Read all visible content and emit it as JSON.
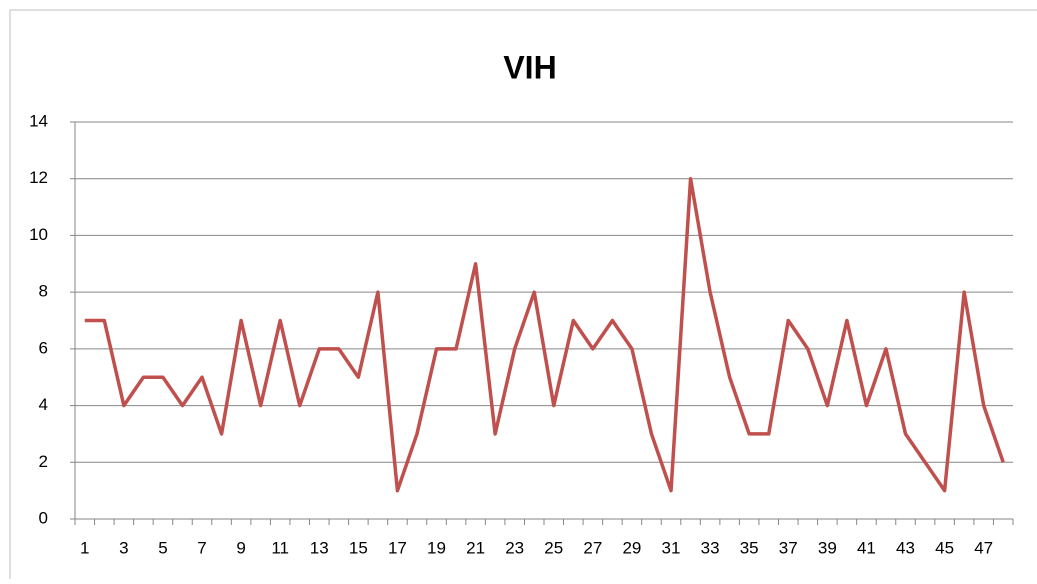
{
  "chart_data": {
    "type": "line",
    "title": "VIH",
    "categories": [
      1,
      null,
      3,
      null,
      5,
      null,
      7,
      null,
      9,
      null,
      11,
      null,
      13,
      null,
      15,
      null,
      17,
      null,
      19,
      null,
      21,
      null,
      23,
      null,
      25,
      null,
      27,
      null,
      29,
      null,
      31,
      null,
      33,
      null,
      35,
      null,
      37,
      null,
      39,
      null,
      41,
      null,
      43,
      null,
      45,
      null,
      47,
      null
    ],
    "series": [
      {
        "name": "VIH",
        "color": "#c0504d",
        "values": [
          7,
          7,
          4,
          5,
          5,
          4,
          5,
          3,
          7,
          4,
          7,
          4,
          6,
          6,
          5,
          8,
          1,
          3,
          6,
          6,
          9,
          3,
          6,
          8,
          4,
          7,
          6,
          7,
          6,
          3,
          1,
          12,
          8,
          5,
          3,
          3,
          7,
          6,
          4,
          7,
          4,
          6,
          3,
          2,
          1,
          8,
          4,
          2
        ]
      }
    ],
    "ylim": [
      0,
      14
    ],
    "yticks": [
      0,
      2,
      4,
      6,
      8,
      10,
      12,
      14
    ],
    "grid": true
  }
}
